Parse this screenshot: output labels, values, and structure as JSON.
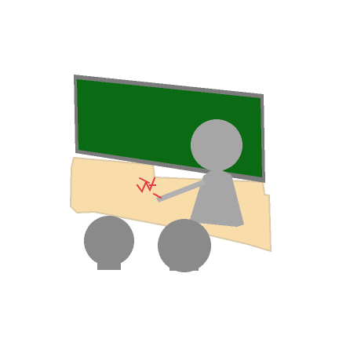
{
  "icon": {
    "name": "classroom-lecture-pixel-icon",
    "colors": {
      "background": "#ffffff",
      "board_frame": "#7b7b7b",
      "board_green": "#0b6b14",
      "floor": "#f8dcaa",
      "floor_edge": "#dccaa6",
      "teacher": "#a6a6a6",
      "students": "#8a8a8a",
      "pointer": "#b0b0b0",
      "mark": "#e23b44"
    }
  }
}
